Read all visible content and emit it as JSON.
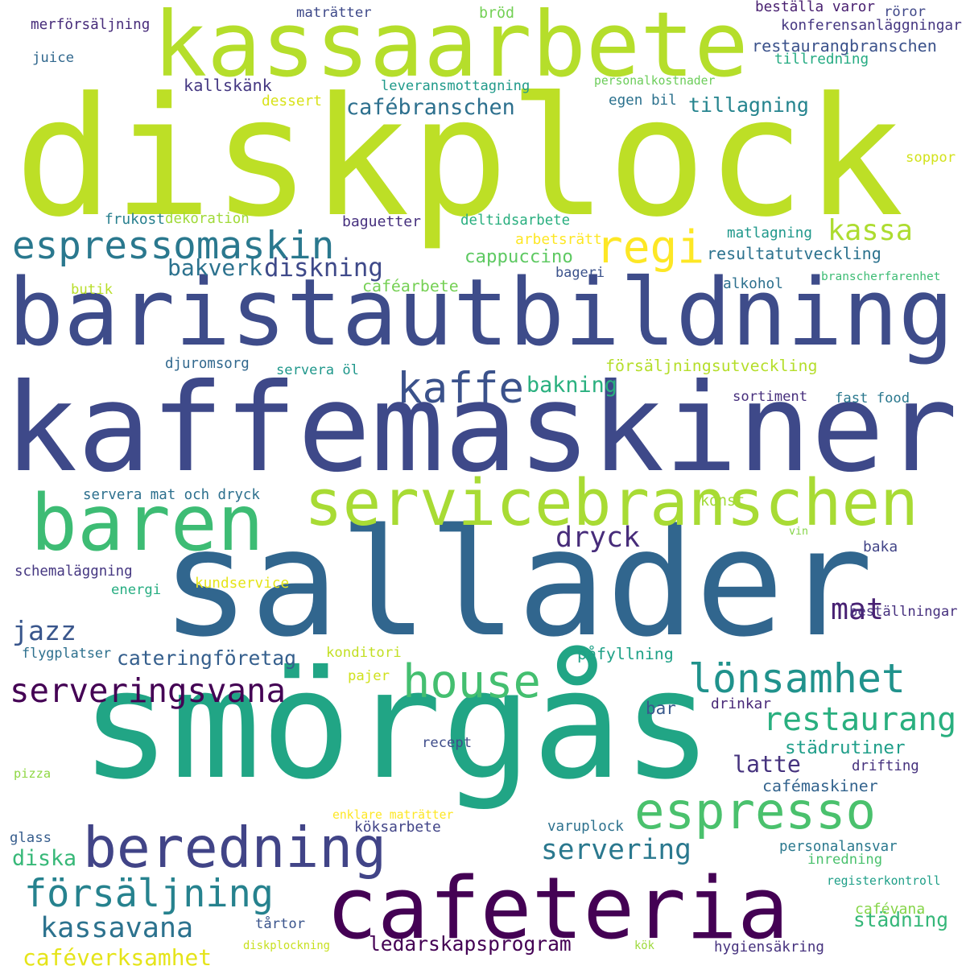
{
  "words": [
    {
      "text": "diskplock",
      "color": "#bddf26"
    },
    {
      "text": "kaffemaskiner",
      "color": "#3e4989"
    },
    {
      "text": "smörgås",
      "color": "#21a585"
    },
    {
      "text": "sallader",
      "color": "#31668e"
    },
    {
      "text": "baristautbildning",
      "color": "#3e4c8a"
    },
    {
      "text": "kassaarbete",
      "color": "#b5de2b"
    },
    {
      "text": "cafeteria",
      "color": "#440154"
    },
    {
      "text": "servicebranschen",
      "color": "#a8db34"
    },
    {
      "text": "baren",
      "color": "#3dbc74"
    },
    {
      "text": "beredning",
      "color": "#414487"
    },
    {
      "text": "espressomaskin",
      "color": "#2a788e"
    },
    {
      "text": "espresso",
      "color": "#4ac16d"
    },
    {
      "text": "house",
      "color": "#44bf70"
    },
    {
      "text": "regi",
      "color": "#fde725"
    },
    {
      "text": "försäljning",
      "color": "#26828e"
    },
    {
      "text": "lönsamhet",
      "color": "#20928c"
    },
    {
      "text": "kaffe",
      "color": "#3b528b"
    },
    {
      "text": "serveringsvana",
      "color": "#440154"
    },
    {
      "text": "restaurang",
      "color": "#29af7f"
    },
    {
      "text": "mat",
      "color": "#482173"
    },
    {
      "text": "kassa",
      "color": "#addc30"
    },
    {
      "text": "kassavana",
      "color": "#2c728e"
    },
    {
      "text": "servering",
      "color": "#2a788e"
    },
    {
      "text": "dryck",
      "color": "#472c7a"
    },
    {
      "text": "diskning",
      "color": "#3e4989"
    },
    {
      "text": "jazz",
      "color": "#39568c"
    },
    {
      "text": "ledarskapsprogram",
      "color": "#440154"
    },
    {
      "text": "bakverk",
      "color": "#2c728e"
    },
    {
      "text": "städning",
      "color": "#35b779"
    },
    {
      "text": "cateringföretag",
      "color": "#355f8d"
    },
    {
      "text": "cafébranschen",
      "color": "#2d708e"
    },
    {
      "text": "tillagning",
      "color": "#25848e"
    },
    {
      "text": "caféverksamhet",
      "color": "#e5e419"
    },
    {
      "text": "diska",
      "color": "#37b878"
    },
    {
      "text": "latte",
      "color": "#46337e"
    },
    {
      "text": "städrutiner",
      "color": "#1f9e89"
    },
    {
      "text": "försäljningsutveckling",
      "color": "#b5de2b"
    },
    {
      "text": "bakning",
      "color": "#2ab07f"
    },
    {
      "text": "restaurangbranschen",
      "color": "#3b528b"
    },
    {
      "text": "resultatutveckling",
      "color": "#2c728e"
    },
    {
      "text": "cafémaskiner",
      "color": "#33638d"
    },
    {
      "text": "merförsäljning",
      "color": "#472c7a"
    },
    {
      "text": "juice",
      "color": "#31688e"
    },
    {
      "text": "maträtter",
      "color": "#3e4989"
    },
    {
      "text": "bröd",
      "color": "#73d055"
    },
    {
      "text": "beställa varor",
      "color": "#481f70"
    },
    {
      "text": "röror",
      "color": "#3f4788"
    },
    {
      "text": "konferensanläggningar",
      "color": "#453781"
    },
    {
      "text": "tillredning",
      "color": "#25ab82"
    },
    {
      "text": "kallskänk",
      "color": "#453882"
    },
    {
      "text": "leveransmottagning",
      "color": "#1f9a8a"
    },
    {
      "text": "personalkostnader",
      "color": "#6ccd5a"
    },
    {
      "text": "dessert",
      "color": "#d8e219"
    },
    {
      "text": "egen bil",
      "color": "#2c728e"
    },
    {
      "text": "soppor",
      "color": "#d2e21b"
    },
    {
      "text": "frukost",
      "color": "#277f8e"
    },
    {
      "text": "dekoration",
      "color": "#a0da39"
    },
    {
      "text": "baguetter",
      "color": "#46307e"
    },
    {
      "text": "deltidsarbete",
      "color": "#29af7f"
    },
    {
      "text": "arbetsrätt",
      "color": "#fde725"
    },
    {
      "text": "matlagning",
      "color": "#1f988b"
    },
    {
      "text": "cappuccino",
      "color": "#5ec962"
    },
    {
      "text": "butik",
      "color": "#b8de29"
    },
    {
      "text": "caféarbete",
      "color": "#75d054"
    },
    {
      "text": "bageri",
      "color": "#3b528b"
    },
    {
      "text": "alkohol",
      "color": "#2d708e"
    },
    {
      "text": "branscherfarenhet",
      "color": "#3dbc74"
    },
    {
      "text": "djuromsorg",
      "color": "#31688e"
    },
    {
      "text": "servera öl",
      "color": "#1f978b"
    },
    {
      "text": "sortiment",
      "color": "#472f7d"
    },
    {
      "text": "fast food",
      "color": "#2a788e"
    },
    {
      "text": "servera mat och dryck",
      "color": "#2d708e"
    },
    {
      "text": "konst",
      "color": "#a2da37"
    },
    {
      "text": "vin",
      "color": "#86d549"
    },
    {
      "text": "baka",
      "color": "#414487"
    },
    {
      "text": "schemaläggning",
      "color": "#453781"
    },
    {
      "text": "kundservice",
      "color": "#e5e419"
    },
    {
      "text": "energi",
      "color": "#26ad81"
    },
    {
      "text": "beställningar",
      "color": "#46307e"
    },
    {
      "text": "flygplatser",
      "color": "#2d708e"
    },
    {
      "text": "konditori",
      "color": "#c2df23"
    },
    {
      "text": "påfyllning",
      "color": "#1fa187"
    },
    {
      "text": "pajer",
      "color": "#d0e11c"
    },
    {
      "text": "bar",
      "color": "#38598c"
    },
    {
      "text": "drinkar",
      "color": "#482878"
    },
    {
      "text": "pizza",
      "color": "#8fd744"
    },
    {
      "text": "recept",
      "color": "#3e4c8a"
    },
    {
      "text": "drifting",
      "color": "#46327e"
    },
    {
      "text": "enklare maträtter",
      "color": "#fde725"
    },
    {
      "text": "köksarbete",
      "color": "#414487"
    },
    {
      "text": "varuplock",
      "color": "#2d718e"
    },
    {
      "text": "glass",
      "color": "#365d8d"
    },
    {
      "text": "personalansvar",
      "color": "#2a788e"
    },
    {
      "text": "inredning",
      "color": "#4ac16d"
    },
    {
      "text": "registerkontroll",
      "color": "#1f9f88"
    },
    {
      "text": "cafévana",
      "color": "#86d549"
    },
    {
      "text": "tårtor",
      "color": "#3a548c"
    },
    {
      "text": "diskplockning",
      "color": "#c8e020"
    },
    {
      "text": "kök",
      "color": "#9dd93b"
    },
    {
      "text": "hygiensäkring",
      "color": "#46327e"
    }
  ]
}
